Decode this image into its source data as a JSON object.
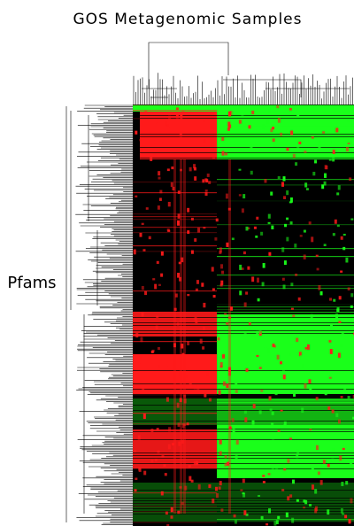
{
  "title": "GOS Metagenomic Samples",
  "row_label": "Pfams"
}
